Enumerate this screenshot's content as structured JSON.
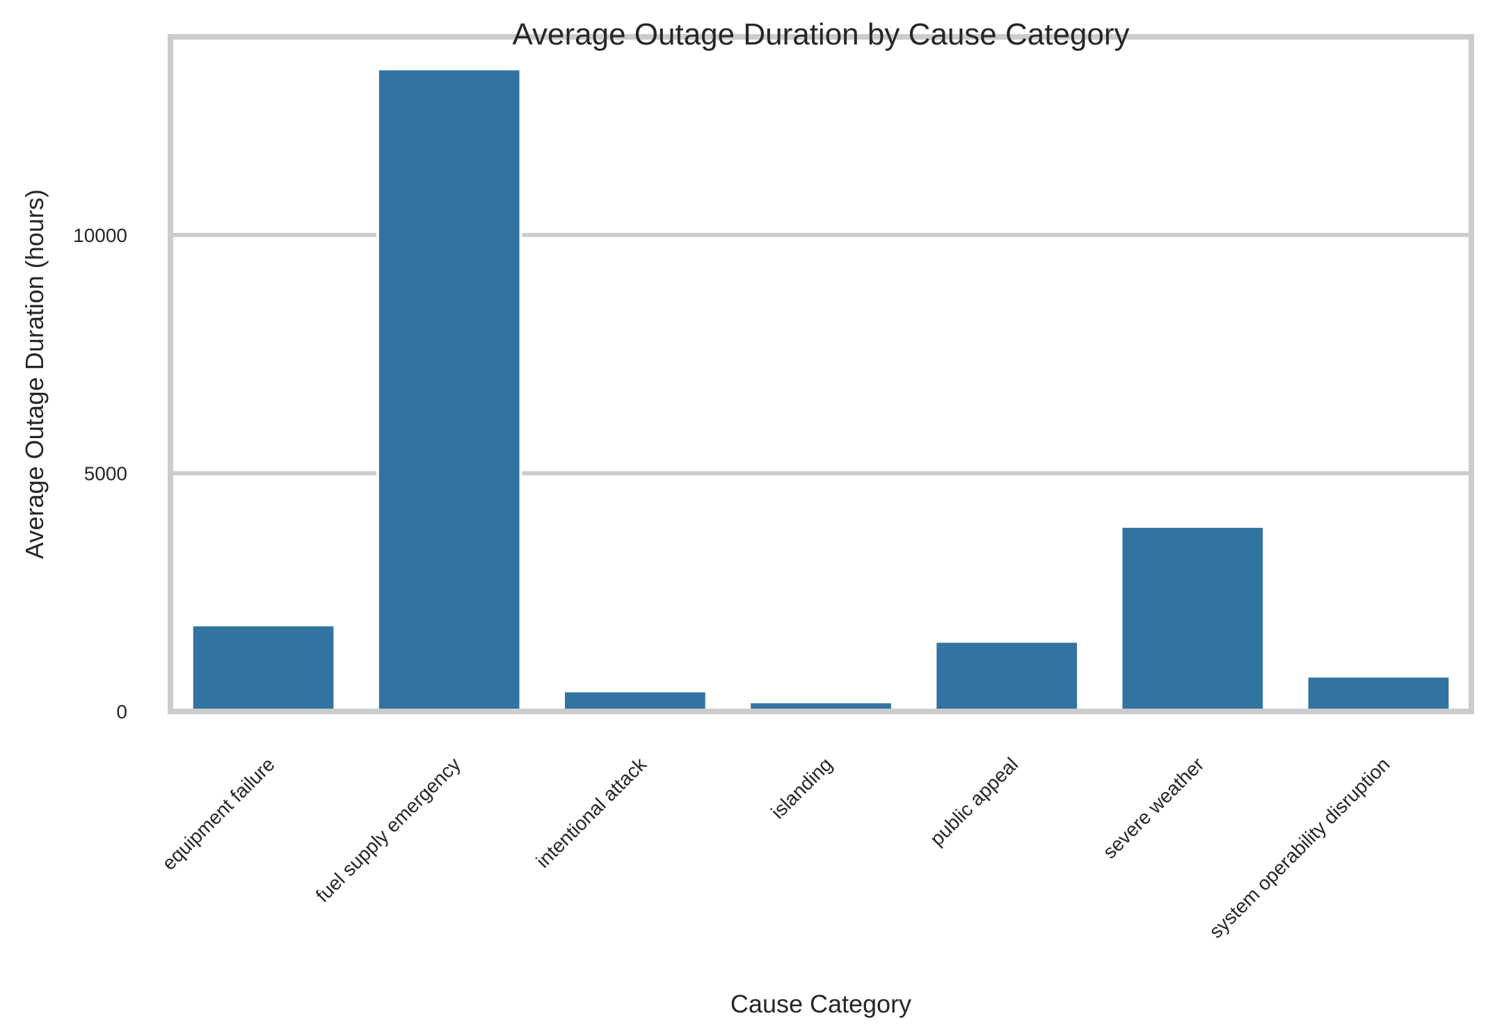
{
  "chart_data": {
    "type": "bar",
    "title": "Average Outage Duration by Cause Category",
    "xlabel": "Cause Category",
    "ylabel": "Average Outage Duration (hours)",
    "categories": [
      "equipment failure",
      "fuel supply emergency",
      "intentional attack",
      "islanding",
      "public appeal",
      "severe weather",
      "system operability disruption"
    ],
    "values": [
      1815,
      13484,
      430,
      200,
      1470,
      3883,
      740
    ],
    "yticks": [
      0,
      5000,
      10000
    ],
    "ylim": [
      0,
      14158
    ],
    "grid": "y",
    "legend": "none",
    "bar_color": "#3274a1",
    "grid_color": "#cccccc",
    "frame_color": "#cccccc"
  }
}
